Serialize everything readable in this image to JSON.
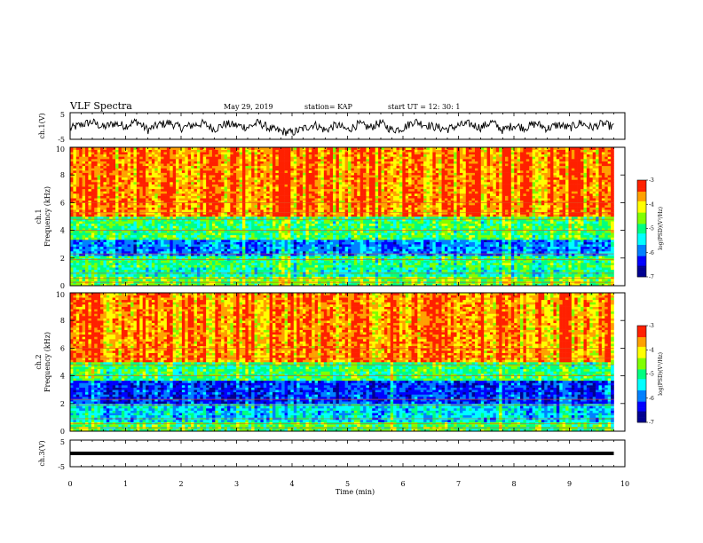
{
  "header": {
    "title": "VLF Spectra",
    "date": "May 29, 2019",
    "station": "station= KAP",
    "start": "start  UT  =   12: 30: 1"
  },
  "chart_data": [
    {
      "type": "line",
      "panel": "ch1-voltage",
      "ylabel": "ch.1(V)",
      "ylim": [
        -5,
        5
      ],
      "yticks": [
        "5",
        "-5"
      ],
      "xlim": [
        0,
        10
      ],
      "series": [
        {
          "x": [
            0,
            0.2,
            0.4,
            0.6,
            0.8,
            1.0,
            1.2,
            1.4,
            1.6,
            1.8,
            2.0,
            2.2,
            2.4,
            2.6,
            2.8,
            3.0,
            3.2,
            3.4,
            3.6,
            3.8,
            4.0,
            4.2,
            4.4,
            4.6,
            4.8,
            5.0,
            5.2,
            5.4,
            5.6,
            5.8,
            6.0,
            6.2,
            6.4,
            6.6,
            6.8,
            7.0,
            7.2,
            7.4,
            7.6,
            7.8,
            8.0,
            8.2,
            8.4,
            8.6,
            8.8,
            9.0,
            9.2,
            9.4,
            9.6,
            9.8
          ],
          "y": [
            -1.0,
            0.5,
            1.5,
            -0.5,
            1.0,
            0.0,
            1.8,
            -1.5,
            0.5,
            1.2,
            -0.8,
            0.3,
            1.0,
            -1.2,
            0.8,
            0.2,
            -0.5,
            1.3,
            -1.0,
            -2.0,
            -2.5,
            -1.0,
            0.6,
            -1.6,
            0.4,
            -1.5,
            0.7,
            -0.6,
            1.2,
            -1.5,
            -0.8,
            1.8,
            0.5,
            -0.5,
            -1.2,
            0.2,
            0.8,
            -0.6,
            1.5,
            -1.6,
            0.3,
            -0.7,
            1.0,
            -1.0,
            0.5,
            -0.8,
            1.2,
            -0.6,
            0.9,
            -0.4
          ]
        }
      ]
    },
    {
      "type": "heatmap",
      "panel": "ch1-spectrogram",
      "ylabel": "ch.1\nFrequency  (kHz)",
      "ylabel_lines": [
        "ch.1",
        "Frequency  (kHz)"
      ],
      "ylim": [
        0,
        10
      ],
      "yticks": [
        "0",
        "2",
        "4",
        "6",
        "8",
        "10"
      ],
      "xlim": [
        0,
        10
      ],
      "bands_khz": [
        {
          "range": [
            0,
            0.7
          ],
          "level": -4.6
        },
        {
          "range": [
            0.7,
            1.3
          ],
          "level": -5.2
        },
        {
          "range": [
            1.3,
            2.2
          ],
          "level": -5.0
        },
        {
          "range": [
            2.2,
            3.3
          ],
          "level": -5.9
        },
        {
          "range": [
            3.3,
            5.0
          ],
          "level": -4.9
        },
        {
          "range": [
            5.0,
            10.0
          ],
          "level": -3.6
        }
      ],
      "colorbar": {
        "label": "log(PSD)(V²/Hz)",
        "range": [
          -7,
          -3
        ],
        "ticks": [
          "-3",
          "-4",
          "-5",
          "-6",
          "-7"
        ]
      }
    },
    {
      "type": "heatmap",
      "panel": "ch2-spectrogram",
      "ylabel": "ch.2\nFrequency  (kHz)",
      "ylabel_lines": [
        "ch.2",
        "Frequency  (kHz)"
      ],
      "ylim": [
        0,
        10
      ],
      "yticks": [
        "0",
        "2",
        "4",
        "6",
        "8",
        "10"
      ],
      "xlim": [
        0,
        10
      ],
      "bands_khz": [
        {
          "range": [
            0,
            0.7
          ],
          "level": -4.8
        },
        {
          "range": [
            0.7,
            2.0
          ],
          "level": -5.5
        },
        {
          "range": [
            2.0,
            3.6
          ],
          "level": -6.2
        },
        {
          "range": [
            3.6,
            5.0
          ],
          "level": -4.9
        },
        {
          "range": [
            5.0,
            10.0
          ],
          "level": -3.6
        }
      ],
      "colorbar": {
        "label": "log(PSD)(V²/Hz)",
        "range": [
          -7,
          -3
        ],
        "ticks": [
          "-3",
          "-4",
          "-5",
          "-6",
          "-7"
        ]
      }
    },
    {
      "type": "line",
      "panel": "ch3-voltage",
      "ylabel": "ch.3(V)",
      "ylim": [
        -5,
        5
      ],
      "yticks": [
        "5",
        "-5"
      ],
      "xlim": [
        0,
        10
      ],
      "series": [
        {
          "x": [
            0,
            9.8
          ],
          "y": [
            0,
            0
          ]
        }
      ]
    }
  ],
  "xaxis": {
    "label": "Time  (min)",
    "ticks": [
      "0",
      "1",
      "2",
      "3",
      "4",
      "5",
      "6",
      "7",
      "8",
      "9",
      "10"
    ]
  },
  "colors": {
    "line": "#000000",
    "colormap": [
      "#000090",
      "#0000ff",
      "#00a0ff",
      "#00ffff",
      "#00ff80",
      "#80ff00",
      "#ffff00",
      "#ffa000",
      "#ff0000",
      "#ffffff"
    ]
  }
}
